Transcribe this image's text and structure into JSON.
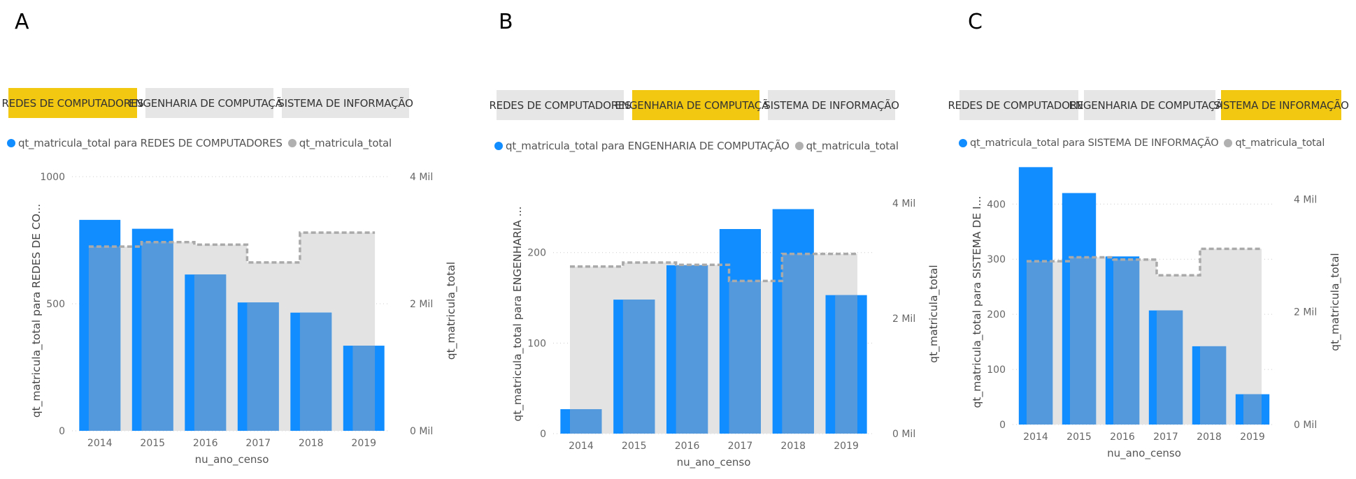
{
  "colors": {
    "series_bar": "#118dff",
    "series_bar_overlap": "#5399dc",
    "total_area": "#e3e3e3",
    "total_line": "#aaaaaa",
    "slicer_active": "#f2c811",
    "slicer_inactive": "#e6e6e6",
    "gridline": "#cccccc",
    "legend_total_dot": "#b0b0b0"
  },
  "panels": [
    {
      "letter": "A",
      "slicer": [
        "REDES DE COMPUTADORES",
        "ENGENHARIA DE COMPUTAÇÃO",
        "SISTEMA DE INFORMAÇÃO"
      ],
      "active_index": 0,
      "legend": [
        "qt_matricula_total para REDES DE COMPUTADORES",
        "qt_matricula_total"
      ],
      "y_label": "qt_matricula_total para REDES DE CO...",
      "y2_label": "qt_matricula_total",
      "x_label": "nu_ano_censo",
      "y_ticks": [
        "0",
        "500",
        "1000"
      ],
      "y2_ticks": [
        "0 Mil",
        "2 Mil",
        "4 Mil"
      ]
    },
    {
      "letter": "B",
      "slicer": [
        "REDES DE COMPUTADORES",
        "ENGENHARIA DE COMPUTAÇÃO",
        "SISTEMA DE INFORMAÇÃO"
      ],
      "active_index": 1,
      "legend": [
        "qt_matricula_total para ENGENHARIA DE COMPUTAÇÃO",
        "qt_matricula_total"
      ],
      "y_label": "qt_matricula_total para ENGENHARIA ...",
      "y2_label": "qt_matricula_total",
      "x_label": "nu_ano_censo",
      "y_ticks": [
        "0",
        "100",
        "200"
      ],
      "y2_ticks": [
        "0 Mil",
        "2 Mil",
        "4 Mil"
      ]
    },
    {
      "letter": "C",
      "slicer": [
        "REDES DE COMPUTADORES",
        "ENGENHARIA DE COMPUTAÇÃO",
        "SISTEMA DE INFORMAÇÃO"
      ],
      "active_index": 2,
      "legend": [
        "qt_matricula_total para SISTEMA DE INFORMAÇÃO",
        "qt_matricula_total"
      ],
      "y_label": "qt_matricula_total para SISTEMA DE I...",
      "y2_label": "qt_matricula_total",
      "x_label": "nu_ano_censo",
      "y_ticks": [
        "0",
        "100",
        "200",
        "300",
        "400"
      ],
      "y2_ticks": [
        "0 Mil",
        "2 Mil",
        "4 Mil"
      ]
    }
  ],
  "chart_data": [
    {
      "type": "bar",
      "categories": [
        "2014",
        "2015",
        "2016",
        "2017",
        "2018",
        "2019"
      ],
      "series": [
        {
          "name": "qt_matricula_total para REDES DE COMPUTADORES",
          "axis": "left",
          "values": [
            830,
            795,
            615,
            505,
            465,
            335
          ]
        },
        {
          "name": "qt_matricula_total",
          "axis": "right",
          "style": "stepped-area",
          "values": [
            2900,
            2970,
            2930,
            2650,
            3120,
            3120
          ]
        }
      ],
      "xlabel": "nu_ano_censo",
      "ylabel": "qt_matricula_total para REDES DE CO...",
      "y2label": "qt_matricula_total",
      "ylim": [
        0,
        1000
      ],
      "y2lim": [
        0,
        4000
      ],
      "grid": true,
      "legend": "top-left"
    },
    {
      "type": "bar",
      "categories": [
        "2014",
        "2015",
        "2016",
        "2017",
        "2018",
        "2019"
      ],
      "series": [
        {
          "name": "qt_matricula_total para ENGENHARIA DE COMPUTAÇÃO",
          "axis": "left",
          "values": [
            27,
            148,
            186,
            226,
            248,
            153
          ]
        },
        {
          "name": "qt_matricula_total",
          "axis": "right",
          "style": "stepped-area",
          "values": [
            2900,
            2970,
            2930,
            2650,
            3120,
            3120
          ]
        }
      ],
      "xlabel": "nu_ano_censo",
      "ylabel": "qt_matricula_total para ENGENHARIA ...",
      "y2label": "qt_matricula_total",
      "ylim": [
        0,
        280
      ],
      "y2lim": [
        0,
        4400
      ],
      "grid": true,
      "legend": "top-left"
    },
    {
      "type": "bar",
      "categories": [
        "2014",
        "2015",
        "2016",
        "2017",
        "2018",
        "2019"
      ],
      "series": [
        {
          "name": "qt_matricula_total para SISTEMA DE INFORMAÇÃO",
          "axis": "left",
          "values": [
            467,
            420,
            305,
            207,
            142,
            55
          ]
        },
        {
          "name": "qt_matricula_total",
          "axis": "right",
          "style": "stepped-area",
          "values": [
            2900,
            2970,
            2930,
            2650,
            3120,
            3120
          ]
        }
      ],
      "xlabel": "nu_ano_censo",
      "ylabel": "qt_matricula_total para SISTEMA DE I...",
      "y2label": "qt_matricula_total",
      "ylim": [
        0,
        470
      ],
      "y2lim": [
        0,
        4600
      ],
      "grid": true,
      "legend": "top-left"
    }
  ]
}
